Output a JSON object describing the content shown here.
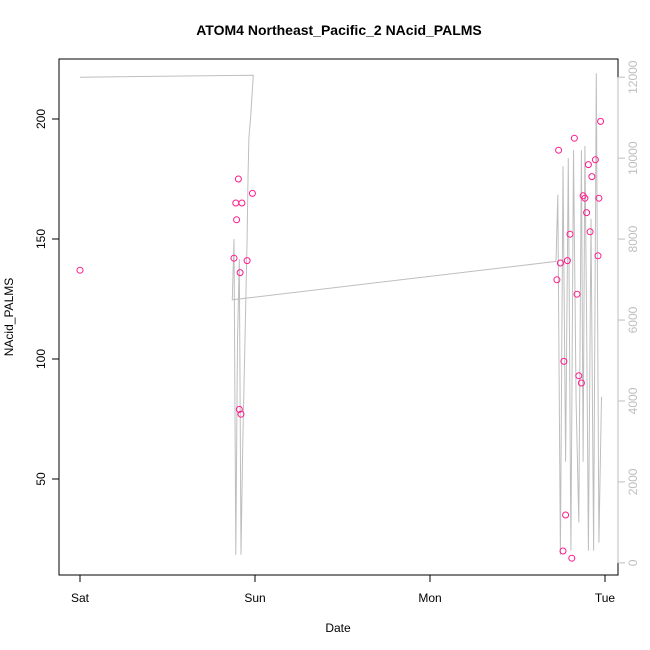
{
  "chart_data": {
    "type": "scatter",
    "title": "ATOM4 Northeast_Pacific_2 NAcid_PALMS",
    "xlabel": "Date",
    "ylabel": "NAcid_PALMS",
    "x_ticks": [
      "Sat",
      "Sun",
      "Mon",
      "Tue"
    ],
    "xlim_days": [
      0,
      3.05
    ],
    "y_ticks": [
      50,
      100,
      150,
      200
    ],
    "ylim": [
      10,
      225
    ],
    "y2_ticks": [
      0,
      2000,
      4000,
      6000,
      8000,
      10000,
      12000
    ],
    "y2lim": [
      -300,
      12450
    ],
    "colors": {
      "points": "#ff1a8c",
      "line": "#bebebe",
      "axis": "#000000",
      "axis2": "#bebebe"
    },
    "series": [
      {
        "type": "scatter",
        "axis": "left",
        "x": [
          0.0,
          0.88,
          0.89,
          0.895,
          0.905,
          0.91,
          0.915,
          0.92,
          0.925,
          0.955,
          0.985,
          2.725,
          2.735,
          2.745,
          2.76,
          2.765,
          2.775,
          2.785,
          2.8,
          2.81,
          2.825,
          2.84,
          2.85,
          2.865,
          2.875,
          2.885,
          2.895,
          2.905,
          2.915,
          2.925,
          2.945,
          2.96,
          2.965,
          2.975
        ],
        "y": [
          137,
          142,
          165,
          158,
          175,
          79,
          136,
          77,
          165,
          141,
          169,
          133,
          187,
          140,
          20,
          99,
          35,
          141,
          152,
          17,
          192,
          127,
          93,
          90,
          168,
          167,
          161,
          181,
          153,
          176,
          183,
          143,
          167,
          199
        ]
      },
      {
        "type": "line",
        "axis": "right",
        "x": [
          0.0,
          0.99,
          0.975,
          0.965,
          0.96,
          0.955,
          0.945,
          0.93,
          0.92,
          0.91,
          0.9,
          0.89,
          0.88,
          0.87,
          2.72,
          2.73,
          2.745,
          2.76,
          2.775,
          2.79,
          2.805,
          2.82,
          2.835,
          2.85,
          2.865,
          2.875,
          2.885,
          2.895,
          2.905,
          2.92,
          2.935,
          2.95,
          2.965,
          2.98
        ],
        "y": [
          12000,
          12050,
          11000,
          10500,
          9500,
          8000,
          6000,
          3000,
          200,
          7500,
          5500,
          200,
          8000,
          6500,
          7450,
          9100,
          200,
          9800,
          2500,
          10000,
          300,
          10200,
          4000,
          1000,
          10200,
          2500,
          10300,
          6000,
          300,
          8500,
          300,
          12100,
          500,
          4100
        ]
      }
    ]
  }
}
